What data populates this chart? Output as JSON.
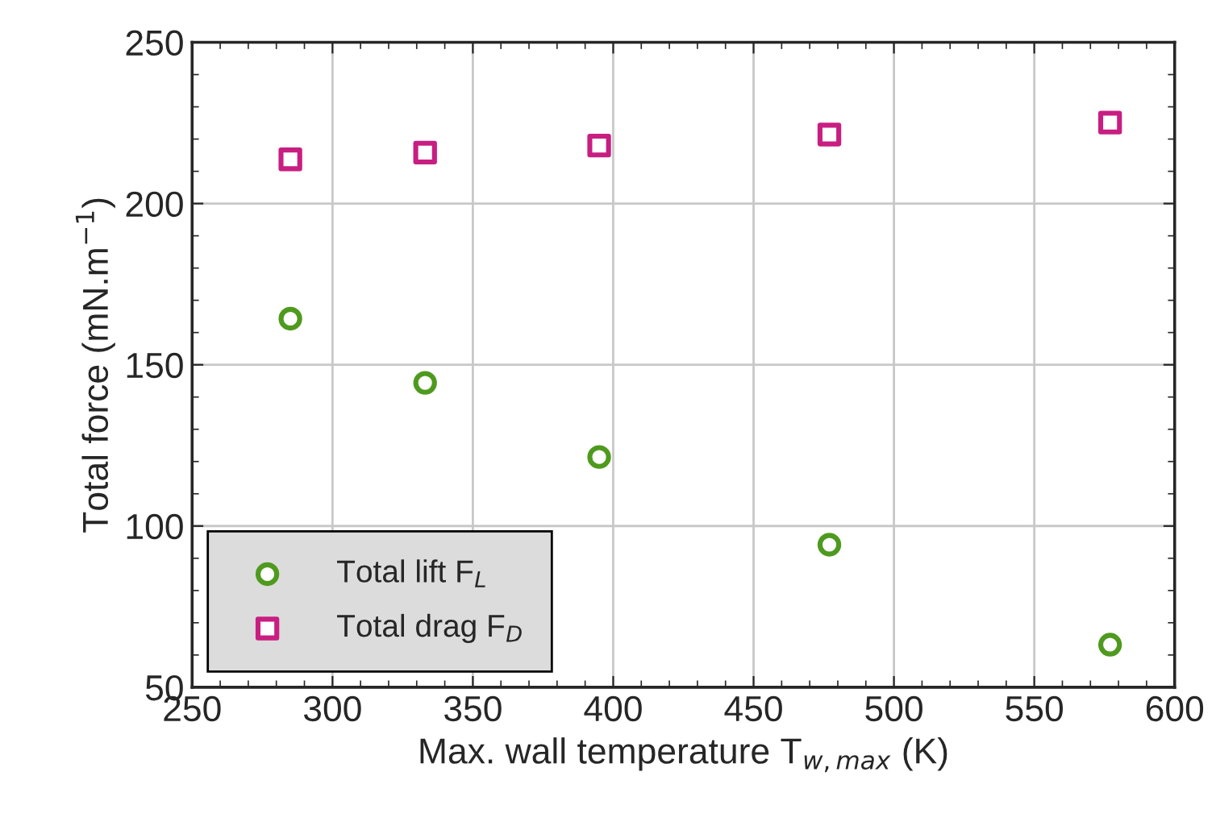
{
  "chart_data": {
    "type": "scatter",
    "xlabel": "Max. wall temperature T$_{w,max}$ (K)",
    "ylabel": "Total force (mN.m$^{−1}$)",
    "x": [
      285,
      333,
      395,
      477,
      577
    ],
    "series": [
      {
        "name": "Total lift F$_{L}$",
        "color": "#4e9a1e",
        "marker": "circle",
        "values": [
          164.3,
          144.4,
          121.4,
          94.2,
          63.2
        ]
      },
      {
        "name": "Total drag F$_{D}$",
        "color": "#c81e82",
        "marker": "square",
        "values": [
          213.7,
          215.8,
          218.0,
          221.4,
          225.1
        ]
      }
    ],
    "xlim": [
      250,
      600
    ],
    "xticks": [
      250,
      300,
      350,
      400,
      450,
      500,
      550,
      600
    ],
    "ylim": [
      50,
      250
    ],
    "yticks": [
      50,
      100,
      150,
      200,
      250
    ],
    "grid": true,
    "legend": "bottom left"
  }
}
